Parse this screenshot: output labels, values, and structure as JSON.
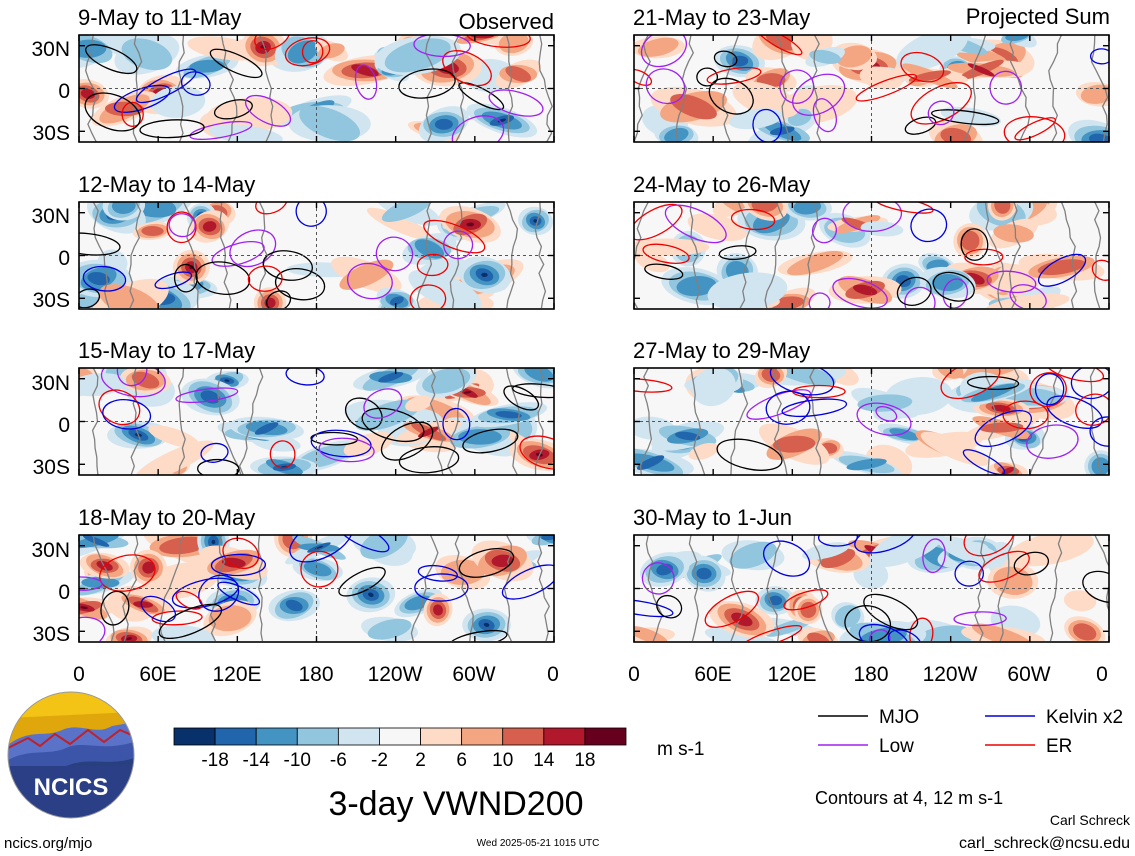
{
  "panel_labels": {
    "observed": "Observed",
    "projected": "Projected Sum"
  },
  "panels": {
    "left": [
      {
        "period": "9-May to 11-May"
      },
      {
        "period": "12-May to 14-May"
      },
      {
        "period": "15-May to 17-May"
      },
      {
        "period": "18-May to 20-May"
      }
    ],
    "right": [
      {
        "period": "21-May to 23-May"
      },
      {
        "period": "24-May to 26-May"
      },
      {
        "period": "27-May to 29-May"
      },
      {
        "period": "30-May to 1-Jun"
      }
    ]
  },
  "lat_labels": [
    "30N",
    "0",
    "30S"
  ],
  "lon_labels": [
    "0",
    "60E",
    "120E",
    "180",
    "120W",
    "60W",
    "0"
  ],
  "colorbar": {
    "ticks": [
      "-18",
      "-14",
      "-10",
      "-6",
      "-2",
      "2",
      "6",
      "10",
      "14",
      "18"
    ],
    "colors": [
      "#08306b",
      "#2166ac",
      "#4393c3",
      "#92c5de",
      "#d1e5f0",
      "#f7f7f7",
      "#fddbc7",
      "#f4a582",
      "#d6604d",
      "#b2182b",
      "#67001f"
    ],
    "unit": "m s-1"
  },
  "legend": [
    {
      "label": "MJO",
      "color": "#000000"
    },
    {
      "label": "Kelvin x2",
      "color": "#0000dd"
    },
    {
      "label": "Low",
      "color": "#a020f0"
    },
    {
      "label": "ER",
      "color": "#ee0000"
    }
  ],
  "contour_note": "Contours at 4, 12 m s-1",
  "main_title": "3-day VWND200",
  "logo_text": "NCICS",
  "footer": {
    "website": "ncics.org/mjo",
    "timestamp": "Wed 2025-05-21 1015 UTC",
    "author": "Carl Schreck",
    "email": "carl_schreck@ncsu.edu"
  }
}
